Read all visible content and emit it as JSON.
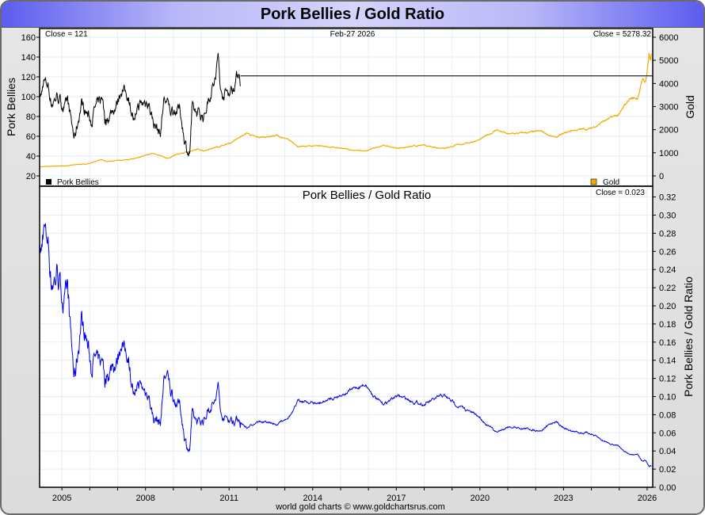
{
  "title": "Pork Bellies / Gold Ratio",
  "footer": "world gold charts © www.goldchartsrus.com",
  "colors": {
    "pork": "#000000",
    "gold": "#f5aa00",
    "ratio": "#0000ee",
    "grid": "#e2eff7"
  },
  "chart_data": [
    {
      "type": "line",
      "panel": "top",
      "date_label": "Feb-27  2026",
      "left_close": "Close = 121",
      "right_close": "Close = 5278.32",
      "ylabel_left": "Pork Bellies",
      "ylabel_right": "Gold",
      "ylim_left": [
        12,
        168
      ],
      "ylim_right": [
        -400,
        6300
      ],
      "yticks_left": [
        20,
        40,
        60,
        80,
        100,
        120,
        140,
        160
      ],
      "yticks_right": [
        0,
        1000,
        2000,
        3000,
        4000,
        5000,
        6000
      ],
      "legend": [
        {
          "name": "Pork Bellies",
          "color": "#000000",
          "position": "bottom-left"
        },
        {
          "name": "Gold",
          "color": "#f5aa00",
          "position": "bottom-right"
        }
      ],
      "series": [
        {
          "name": "Pork Bellies",
          "axis": "left",
          "points": [
            [
              2004.2,
              100
            ],
            [
              2004.26,
              100
            ],
            [
              2004.34,
              116
            ],
            [
              2004.5,
              112
            ],
            [
              2004.63,
              93
            ],
            [
              2004.83,
              101
            ],
            [
              2005.11,
              87
            ],
            [
              2005.2,
              96
            ],
            [
              2005.45,
              57
            ],
            [
              2005.71,
              94
            ],
            [
              2006.05,
              75
            ],
            [
              2006.19,
              88
            ],
            [
              2006.48,
              99
            ],
            [
              2006.54,
              75
            ],
            [
              2006.96,
              92
            ],
            [
              2007.13,
              108
            ],
            [
              2007.39,
              101
            ],
            [
              2007.62,
              70
            ],
            [
              2007.7,
              90
            ],
            [
              2008.1,
              96
            ],
            [
              2008.27,
              75
            ],
            [
              2008.53,
              62
            ],
            [
              2008.67,
              99
            ],
            [
              2008.9,
              86
            ],
            [
              2009.24,
              87
            ],
            [
              2009.41,
              55
            ],
            [
              2009.58,
              40
            ],
            [
              2009.67,
              86
            ],
            [
              2010.1,
              80
            ],
            [
              2010.27,
              99
            ],
            [
              2010.52,
              118
            ],
            [
              2010.61,
              143
            ],
            [
              2010.7,
              103
            ],
            [
              2011.12,
              107
            ],
            [
              2011.27,
              120
            ],
            [
              2011.38,
              127
            ],
            [
              2011.41,
              107
            ]
          ],
          "hold_value": 121
        },
        {
          "name": "Gold",
          "axis": "right",
          "points": [
            [
              2004.2,
              390
            ],
            [
              2005,
              430
            ],
            [
              2005.9,
              520
            ],
            [
              2006.4,
              690
            ],
            [
              2006.6,
              620
            ],
            [
              2007,
              650
            ],
            [
              2007.7,
              760
            ],
            [
              2008.2,
              980
            ],
            [
              2008.8,
              760
            ],
            [
              2009.1,
              920
            ],
            [
              2009.9,
              1150
            ],
            [
              2010.1,
              1100
            ],
            [
              2011,
              1400
            ],
            [
              2011.65,
              1850
            ],
            [
              2012,
              1650
            ],
            [
              2012.7,
              1750
            ],
            [
              2013.3,
              1450
            ],
            [
              2013.5,
              1250
            ],
            [
              2014.2,
              1320
            ],
            [
              2015,
              1180
            ],
            [
              2015.9,
              1060
            ],
            [
              2016.5,
              1330
            ],
            [
              2017,
              1200
            ],
            [
              2018,
              1320
            ],
            [
              2018.7,
              1200
            ],
            [
              2019.5,
              1420
            ],
            [
              2020,
              1560
            ],
            [
              2020.6,
              2000
            ],
            [
              2021,
              1800
            ],
            [
              2022.2,
              1920
            ],
            [
              2022.7,
              1650
            ],
            [
              2023.3,
              1970
            ],
            [
              2024,
              2050
            ],
            [
              2024.4,
              2350
            ],
            [
              2025,
              2650
            ],
            [
              2025.37,
              3350
            ],
            [
              2025.65,
              3380
            ],
            [
              2025.85,
              4200
            ],
            [
              2025.95,
              4050
            ],
            [
              2026.07,
              5300
            ],
            [
              2026.12,
              5000
            ],
            [
              2026.16,
              5278.32
            ]
          ]
        }
      ]
    },
    {
      "type": "line",
      "panel": "bottom",
      "title": "Pork Bellies  /  Gold Ratio",
      "right_close": "Close = 0.023",
      "ylabel_right": "Pork Bellies / Gold Ratio",
      "ylim": [
        0,
        0.33
      ],
      "yticks": [
        "0.00",
        "0.02",
        "0.04",
        "0.06",
        "0.08",
        "0.10",
        "0.12",
        "0.14",
        "0.16",
        "0.18",
        "0.20",
        "0.22",
        "0.24",
        "0.26",
        "0.28",
        "0.30",
        "0.32"
      ],
      "series": [
        {
          "name": "Pork Bellies / Gold Ratio",
          "derived": "Pork Bellies / Gold"
        }
      ]
    }
  ],
  "x_axis": {
    "xlim": [
      2004.2,
      2026.2
    ],
    "ticks": [
      "2005",
      "2008",
      "2011",
      "2014",
      "2017",
      "2020",
      "2023",
      "2026"
    ]
  }
}
